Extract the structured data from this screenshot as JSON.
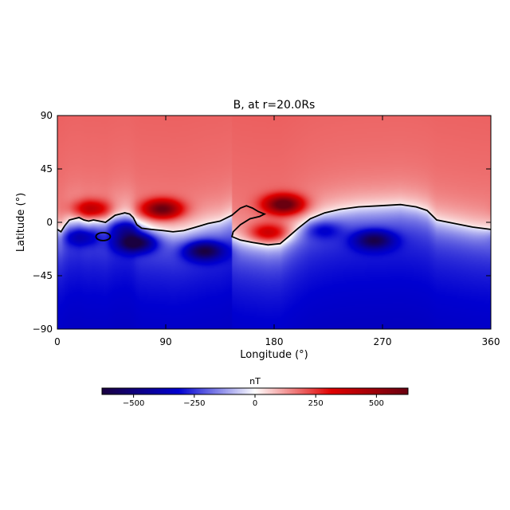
{
  "chart_data": {
    "type": "heatmap",
    "title": "B, at r=20.0Rs",
    "xlabel": "Longitude (°)",
    "ylabel": "Latitude (°)",
    "xlim": [
      0,
      360
    ],
    "ylim": [
      -90,
      90
    ],
    "xticks": [
      "0",
      "90",
      "180",
      "270",
      "360"
    ],
    "yticks": [
      "90",
      "45",
      "0",
      "−45",
      "−90"
    ],
    "colorbar": {
      "label": "nT",
      "range": [
        -630,
        630
      ],
      "ticks": [
        "−500",
        "−250",
        "0",
        "250",
        "500"
      ],
      "tick_values": [
        -500,
        -250,
        0,
        250,
        500
      ],
      "colormap": [
        "#1a0040",
        "#0000d0",
        "#ffffff",
        "#e00000",
        "#6a0010"
      ]
    },
    "background_field": {
      "north_value": 170,
      "south_value": -260
    },
    "features": [
      {
        "name": "positive lobe",
        "lon": 87,
        "lat": 11,
        "value": 620
      },
      {
        "name": "positive lobe",
        "lon": 188,
        "lat": 15,
        "value": 650
      },
      {
        "name": "positive lobe",
        "lon": 28,
        "lat": 11,
        "value": 420
      },
      {
        "name": "positive lobe",
        "lon": 175,
        "lat": -9,
        "value": 380
      },
      {
        "name": "negative lobe",
        "lon": 65,
        "lat": -17,
        "value": -640
      },
      {
        "name": "negative lobe",
        "lon": 122,
        "lat": -24,
        "value": -560
      },
      {
        "name": "negative lobe",
        "lon": 263,
        "lat": -15,
        "value": -520
      },
      {
        "name": "negative lobe",
        "lon": 57,
        "lat": -5,
        "value": -380
      },
      {
        "name": "negative lobe",
        "lon": 20,
        "lat": -12,
        "value": -360
      },
      {
        "name": "negative lobe",
        "lon": 220,
        "lat": -6,
        "value": -300
      }
    ],
    "neutral_line": [
      [
        0,
        -6
      ],
      [
        3,
        -8
      ],
      [
        6,
        -3
      ],
      [
        10,
        2
      ],
      [
        14,
        3
      ],
      [
        18,
        4
      ],
      [
        22,
        2
      ],
      [
        26,
        1
      ],
      [
        30,
        2
      ],
      [
        35,
        1
      ],
      [
        40,
        0
      ],
      [
        44,
        3
      ],
      [
        48,
        6
      ],
      [
        52,
        7
      ],
      [
        56,
        8
      ],
      [
        60,
        7
      ],
      [
        63,
        4
      ],
      [
        66,
        -2
      ],
      [
        70,
        -5
      ],
      [
        78,
        -6
      ],
      [
        88,
        -7
      ],
      [
        96,
        -8
      ],
      [
        105,
        -7
      ],
      [
        115,
        -4
      ],
      [
        125,
        -1
      ],
      [
        135,
        1
      ],
      [
        145,
        6
      ],
      [
        152,
        12
      ],
      [
        157,
        14
      ],
      [
        162,
        12
      ],
      [
        167,
        9
      ],
      [
        172,
        7
      ],
      [
        168,
        5
      ],
      [
        160,
        3
      ],
      [
        152,
        -2
      ],
      [
        146,
        -8
      ],
      [
        145,
        -12
      ],
      [
        152,
        -15
      ],
      [
        162,
        -17
      ],
      [
        175,
        -19
      ],
      [
        185,
        -18
      ],
      [
        192,
        -12
      ],
      [
        200,
        -5
      ],
      [
        210,
        3
      ],
      [
        222,
        8
      ],
      [
        235,
        11
      ],
      [
        250,
        13
      ],
      [
        268,
        14
      ],
      [
        285,
        15
      ],
      [
        298,
        13
      ],
      [
        307,
        10
      ],
      [
        315,
        2
      ],
      [
        330,
        -1
      ],
      [
        345,
        -4
      ],
      [
        360,
        -6
      ]
    ],
    "closed_contour": {
      "lon": 38,
      "lat": -12
    }
  }
}
